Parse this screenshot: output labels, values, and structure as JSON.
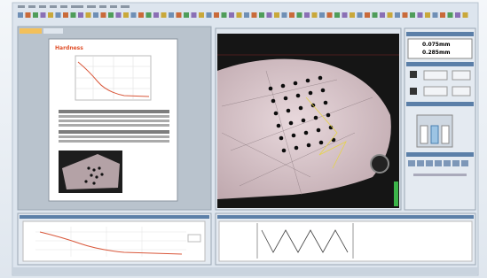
{
  "report": {
    "title": "Hardness"
  },
  "measure": {
    "d1": "0.075mm",
    "d2": "0.285mm"
  }
}
